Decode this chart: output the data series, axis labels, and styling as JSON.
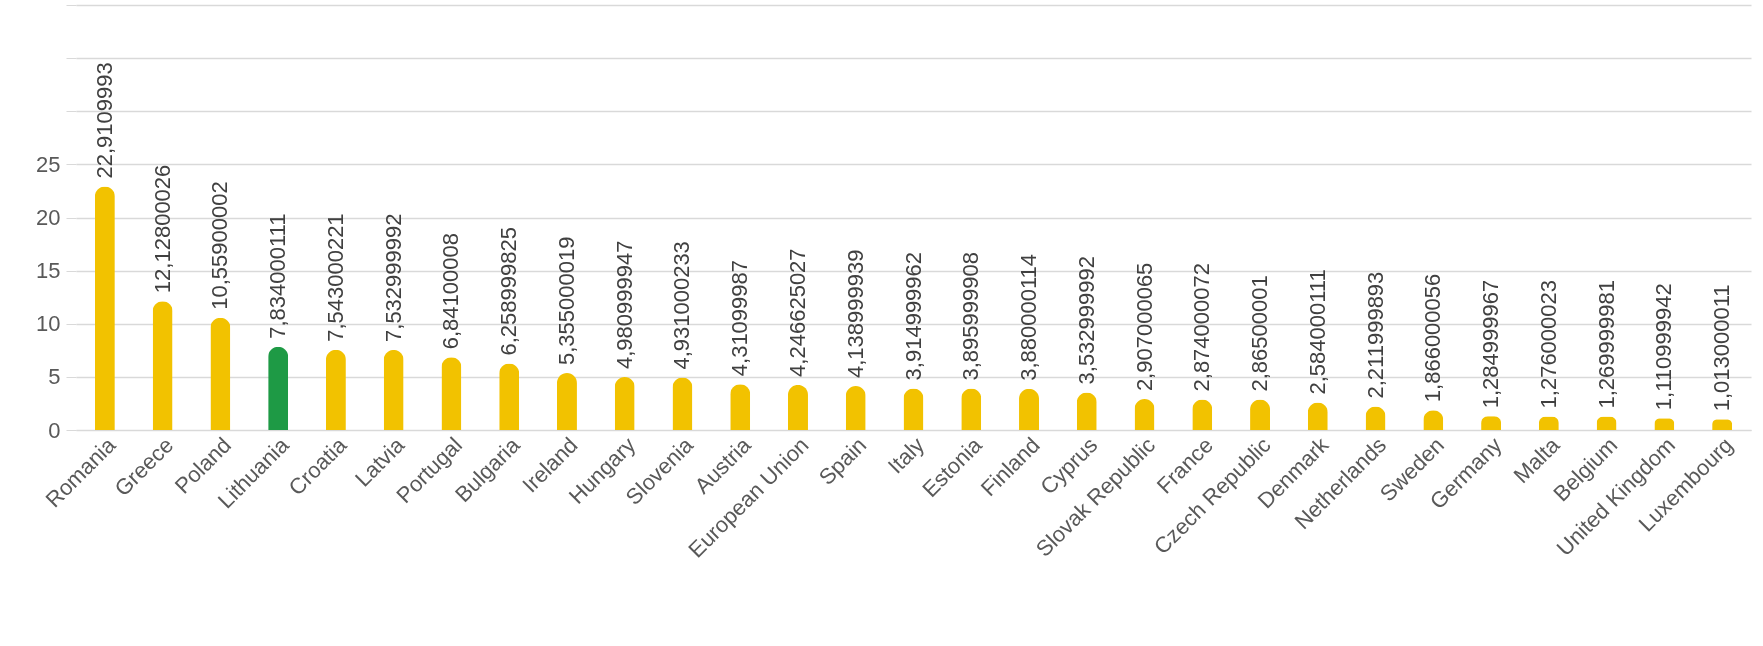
{
  "chart_data": {
    "type": "bar",
    "categories": [
      "Romania",
      "Greece",
      "Poland",
      "Lithuania",
      "Croatia",
      "Latvia",
      "Portugal",
      "Bulgaria",
      "Ireland",
      "Hungary",
      "Slovenia",
      "Austria",
      "European Union",
      "Spain",
      "Italy",
      "Estonia",
      "Finland",
      "Cyprus",
      "Slovak Republic",
      "France",
      "Czech Republic",
      "Denmark",
      "Netherlands",
      "Sweden",
      "Germany",
      "Malta",
      "Belgium",
      "United Kingdom",
      "Luxembourg"
    ],
    "values": [
      22.9109993,
      12.12800026,
      10.55900002,
      7.834000111,
      7.543000221,
      7.532999992,
      6.84100008,
      6.258999825,
      5.355000019,
      4.980999947,
      4.931000233,
      4.31099987,
      4.246625027,
      4.138999939,
      3.914999962,
      3.895999908,
      3.880000114,
      3.532999992,
      2.907000065,
      2.874000072,
      2.86500001,
      2.584000111,
      2.211999893,
      1.866000056,
      1.284999967,
      1.276000023,
      1.269999981,
      1.110999942,
      1.013000011
    ],
    "value_labels": [
      "22,9109993",
      "12,12800026",
      "10,55900002",
      "7,834000111",
      "7,543000221",
      "7,532999992",
      "6,84100008",
      "6,258999825",
      "5,355000019",
      "4,980999947",
      "4,931000233",
      "4,31099987",
      "4,246625027",
      "4,138999939",
      "3,914999962",
      "3,895999908",
      "3,880000114",
      "3,532999992",
      "2,907000065",
      "2,874000072",
      "2,86500001",
      "2,584000111",
      "2,211999893",
      "1,866000056",
      "1,284999967",
      "1,276000023",
      "1,269999981",
      "1,110999942",
      "1,013000011"
    ],
    "colors": [
      "#f2c200",
      "#f2c200",
      "#f2c200",
      "#1e9a45",
      "#f2c200",
      "#f2c200",
      "#f2c200",
      "#f2c200",
      "#f2c200",
      "#f2c200",
      "#f2c200",
      "#f2c200",
      "#f2c200",
      "#f2c200",
      "#f2c200",
      "#f2c200",
      "#f2c200",
      "#f2c200",
      "#f2c200",
      "#f2c200",
      "#f2c200",
      "#f2c200",
      "#f2c200",
      "#f2c200",
      "#f2c200",
      "#f2c200",
      "#f2c200",
      "#f2c200",
      "#f2c200"
    ],
    "ylim": [
      0,
      40
    ],
    "yticks": [
      0,
      5,
      10,
      15,
      20,
      25,
      {
        "value": 30,
        "label": null
      },
      {
        "value": 35,
        "label": null
      },
      {
        "value": 40,
        "label": null
      }
    ],
    "grid": "y"
  }
}
